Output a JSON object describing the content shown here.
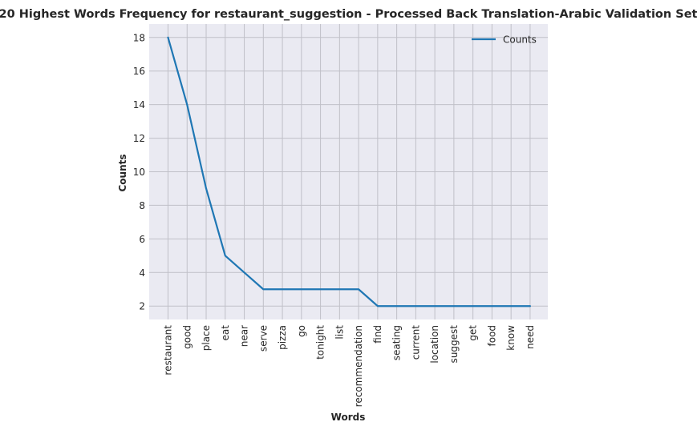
{
  "chart_data": {
    "type": "line",
    "title": "20 Highest Words Frequency for restaurant_suggestion - Processed Back Translation-Arabic Validation Set",
    "xlabel": "Words",
    "ylabel": "Counts",
    "categories": [
      "restaurant",
      "good",
      "place",
      "eat",
      "near",
      "serve",
      "pizza",
      "go",
      "tonight",
      "list",
      "recommendation",
      "find",
      "seating",
      "current",
      "location",
      "suggest",
      "get",
      "food",
      "know",
      "need"
    ],
    "series": [
      {
        "name": "Counts",
        "values": [
          18,
          14,
          9,
          5,
          4,
          3,
          3,
          3,
          3,
          3,
          3,
          2,
          2,
          2,
          2,
          2,
          2,
          2,
          2,
          2
        ]
      }
    ],
    "yticks": [
      2,
      4,
      6,
      8,
      10,
      12,
      14,
      16,
      18
    ],
    "ylim": [
      1.2,
      18.8
    ],
    "grid": true,
    "legend": "top-right",
    "colors": {
      "line": "#1f77b4",
      "background": "#eaeaf2",
      "grid": "#c0c0c8",
      "text": "#262626"
    }
  }
}
